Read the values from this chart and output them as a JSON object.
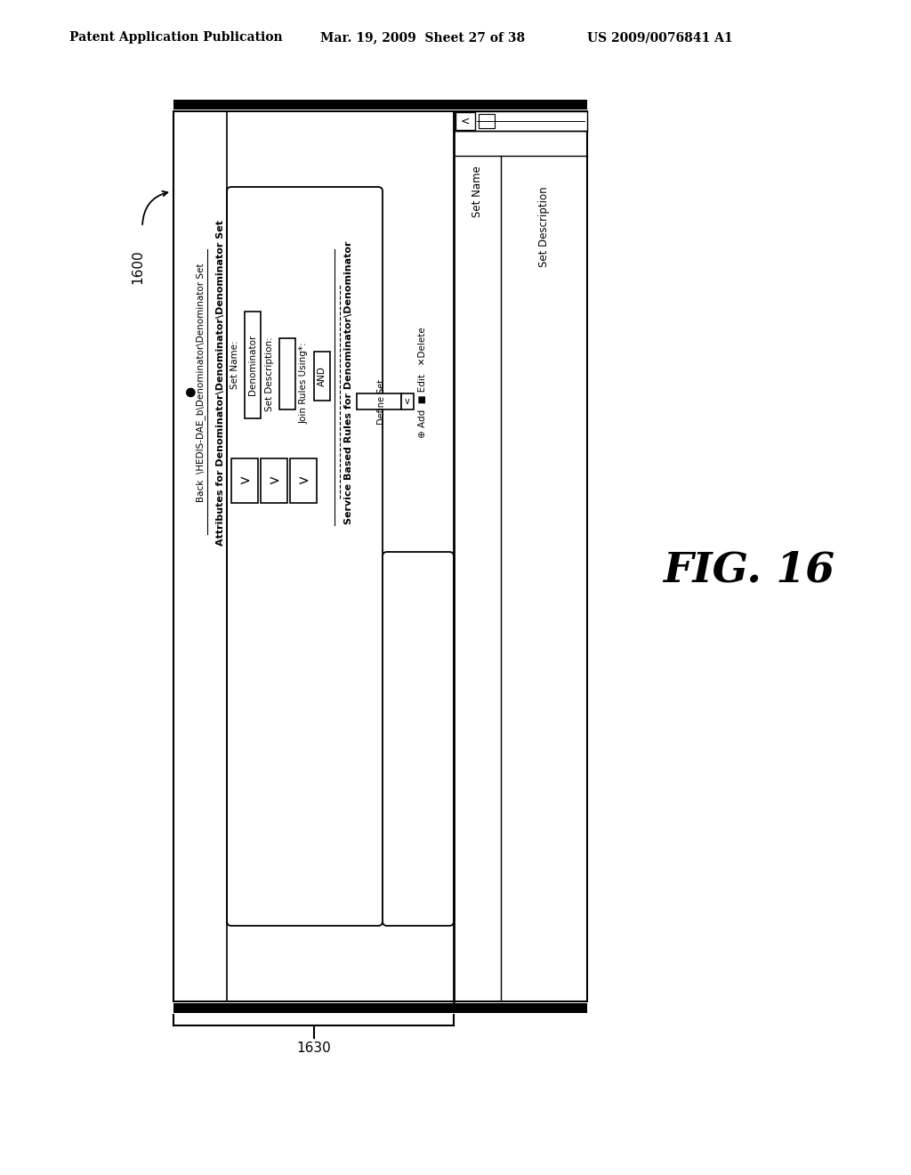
{
  "bg_color": "#ffffff",
  "header_left": "Patent Application Publication",
  "header_mid": "Mar. 19, 2009  Sheet 27 of 38",
  "header_right": "US 2009/0076841 A1",
  "fig_label": "FIG. 16",
  "label_1600": "1600",
  "label_1630": "1630",
  "back_text": "Back  \\HEDIS-DAE_b\\Denominator\\Denominator Set",
  "attributes_title": "Attributes for Denominator\\Denominator\\Denominator Set",
  "set_name_label": "Set Name:",
  "set_desc_label": "Set Description:",
  "join_rules_label": "Join Rules Using*:",
  "set_name_value": "Denominator",
  "join_rules_value": "AND",
  "service_title": "Service Based Rules for Denominator\\Denominator",
  "define_set_label": "Define Set",
  "set_name_col": "Set Name",
  "set_desc_col": "Set Description",
  "add_edit_delete": "⊕ Add  ■ Edit   ✕Delete"
}
